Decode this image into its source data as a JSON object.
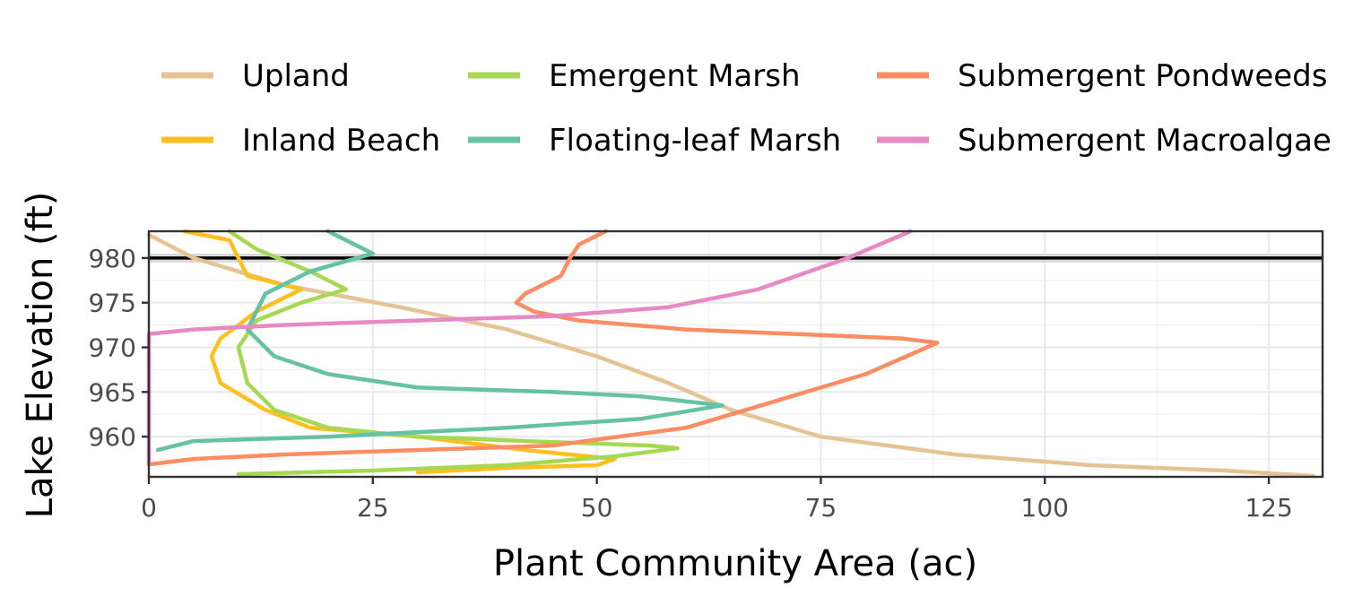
{
  "chart_data": {
    "type": "line",
    "title": "",
    "xlabel": "Plant Community Area (ac)",
    "ylabel": "Lake Elevation (ft)",
    "xlim": [
      0,
      131
    ],
    "ylim": [
      955.5,
      983
    ],
    "x_ticks": [
      "0",
      "25",
      "50",
      "75",
      "100",
      "125"
    ],
    "y_ticks": [
      "960",
      "965",
      "970",
      "975",
      "980"
    ],
    "grid": true,
    "legend_position": "top",
    "reference_line": {
      "y": 980
    },
    "series": [
      {
        "name": "Upland",
        "color": "#e5c494",
        "points": [
          [
            0,
            982.6
          ],
          [
            5,
            980
          ],
          [
            15,
            977
          ],
          [
            28,
            974.5
          ],
          [
            40,
            972
          ],
          [
            50,
            969
          ],
          [
            58,
            966
          ],
          [
            65,
            963
          ],
          [
            75,
            960
          ],
          [
            90,
            958
          ],
          [
            105,
            956.8
          ],
          [
            120,
            956.2
          ],
          [
            130,
            955.6
          ]
        ]
      },
      {
        "name": "Inland Beach",
        "color": "#ffbf1f",
        "points": [
          [
            4,
            983
          ],
          [
            9,
            982
          ],
          [
            10,
            980
          ],
          [
            11,
            978
          ],
          [
            17,
            976.5
          ],
          [
            12,
            974
          ],
          [
            8,
            971
          ],
          [
            7,
            969
          ],
          [
            8,
            966
          ],
          [
            13,
            963
          ],
          [
            18,
            961
          ],
          [
            30,
            960
          ],
          [
            42,
            958.5
          ],
          [
            52,
            957.5
          ],
          [
            50,
            956.8
          ],
          [
            40,
            956.5
          ],
          [
            30,
            956
          ]
        ]
      },
      {
        "name": "Emergent Marsh",
        "color": "#a6d854",
        "points": [
          [
            9,
            983
          ],
          [
            12,
            981
          ],
          [
            18,
            978.5
          ],
          [
            22,
            976.5
          ],
          [
            17,
            975
          ],
          [
            12,
            973
          ],
          [
            10,
            970
          ],
          [
            11,
            966
          ],
          [
            14,
            963
          ],
          [
            20,
            961
          ],
          [
            30,
            960
          ],
          [
            42,
            959.5
          ],
          [
            56,
            959
          ],
          [
            59,
            958.7
          ],
          [
            52,
            957.8
          ],
          [
            40,
            956.8
          ],
          [
            25,
            956.2
          ],
          [
            10,
            955.8
          ]
        ]
      },
      {
        "name": "Floating-leaf Marsh",
        "color": "#66c2a5",
        "points": [
          [
            20,
            983
          ],
          [
            25,
            980.5
          ],
          [
            18,
            978.5
          ],
          [
            13,
            976
          ],
          [
            11,
            972
          ],
          [
            14,
            969
          ],
          [
            20,
            967
          ],
          [
            30,
            965.5
          ],
          [
            45,
            965
          ],
          [
            55,
            964.5
          ],
          [
            64,
            963.5
          ],
          [
            55,
            962
          ],
          [
            40,
            961
          ],
          [
            20,
            960
          ],
          [
            5,
            959.5
          ],
          [
            1,
            958.5
          ]
        ]
      },
      {
        "name": "Submergent Pondweeds",
        "color": "#fc8d62",
        "points": [
          [
            51,
            983
          ],
          [
            48,
            981.5
          ],
          [
            47,
            980
          ],
          [
            46,
            978
          ],
          [
            42,
            976
          ],
          [
            41,
            975
          ],
          [
            43,
            974
          ],
          [
            48,
            973
          ],
          [
            60,
            972
          ],
          [
            72,
            971.5
          ],
          [
            84,
            971
          ],
          [
            88,
            970.5
          ],
          [
            80,
            967
          ],
          [
            70,
            964
          ],
          [
            60,
            961
          ],
          [
            45,
            959
          ],
          [
            30,
            958.5
          ],
          [
            15,
            958
          ],
          [
            5,
            957.5
          ],
          [
            0,
            956.9
          ]
        ]
      },
      {
        "name": "Submergent Macroalgae",
        "color": "#e78ac3",
        "points": [
          [
            85,
            983
          ],
          [
            78,
            980
          ],
          [
            68,
            976.5
          ],
          [
            58,
            974.5
          ],
          [
            45,
            973.5
          ],
          [
            30,
            973
          ],
          [
            15,
            972.5
          ],
          [
            5,
            972
          ],
          [
            0,
            971.5
          ],
          [
            0,
            960
          ],
          [
            0,
            957
          ]
        ]
      }
    ]
  }
}
